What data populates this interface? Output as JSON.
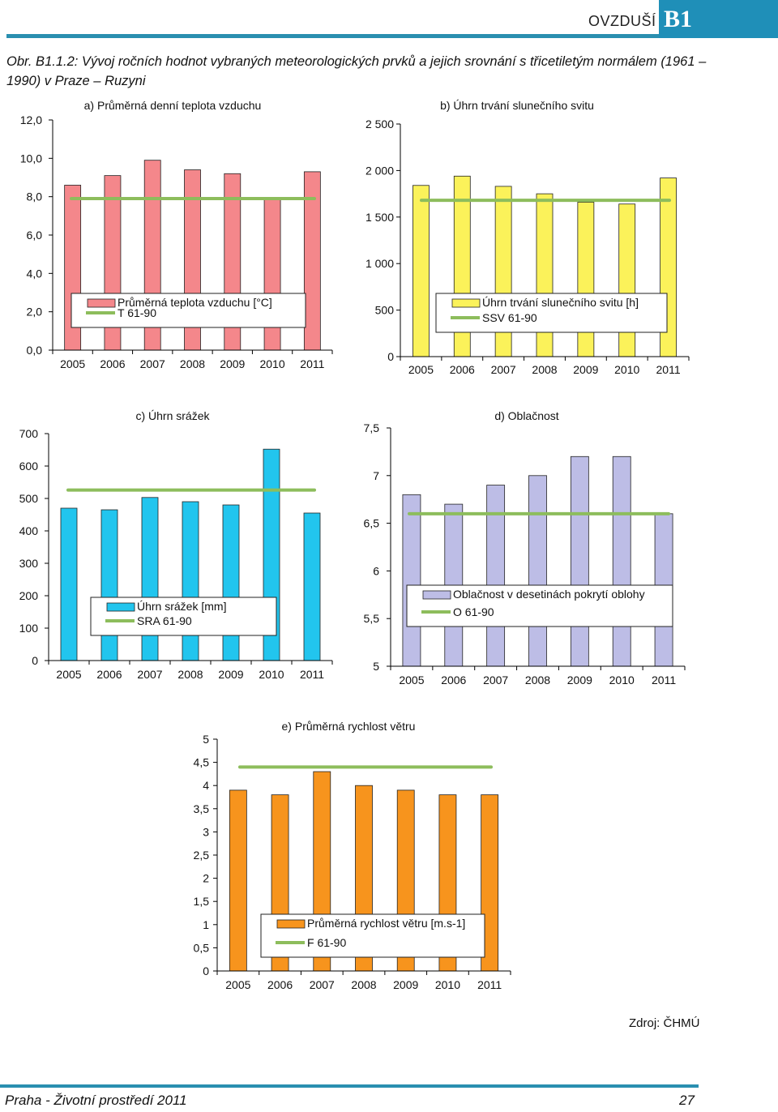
{
  "header": {
    "section": "OVZDUŠÍ",
    "badge": "B1",
    "accent": "#1f8fb8"
  },
  "figure_title": "Obr. B1.1.2: Vývoj ročních hodnot vybraných meteorologických prvků a jejich srovnání s třicetiletým normálem (1961 – 1990) v Praze – Ruzyni",
  "source": "Zdroj: ČHMÚ",
  "footer": {
    "left": "Praha - Životní prostředí 2011",
    "page": "27"
  },
  "chart_data": [
    {
      "type": "bar",
      "title": "a) Průměrná denní teplota vzduchu",
      "categories": [
        "2005",
        "2006",
        "2007",
        "2008",
        "2009",
        "2010",
        "2011"
      ],
      "series": [
        {
          "name": "Průměrná teplota vzduchu [°C]",
          "values": [
            8.6,
            9.1,
            9.9,
            9.4,
            9.2,
            7.9,
            9.3
          ]
        }
      ],
      "normal": {
        "name": "T 61-90",
        "value": 7.9
      },
      "ylim": [
        0,
        12
      ],
      "yticks": [
        "0,0",
        "2,0",
        "4,0",
        "6,0",
        "8,0",
        "10,0",
        "12,0"
      ],
      "colors": {
        "bar": "#f4878b",
        "normal": "#8dbd5c"
      }
    },
    {
      "type": "bar",
      "title": "b) Úhrn trvání slunečního svitu",
      "categories": [
        "2005",
        "2006",
        "2007",
        "2008",
        "2009",
        "2010",
        "2011"
      ],
      "series": [
        {
          "name": "Úhrn trvání slunečního svitu [h]",
          "values": [
            1840,
            1940,
            1830,
            1750,
            1660,
            1640,
            1920
          ]
        }
      ],
      "normal": {
        "name": "SSV 61-90",
        "value": 1680
      },
      "ylim": [
        0,
        2500
      ],
      "yticks": [
        "0",
        "500",
        "1 000",
        "1 500",
        "2 000",
        "2 500"
      ],
      "colors": {
        "bar": "#fbf25a",
        "normal": "#8dbd5c"
      }
    },
    {
      "type": "bar",
      "title": "c) Úhrn srážek",
      "categories": [
        "2005",
        "2006",
        "2007",
        "2008",
        "2009",
        "2010",
        "2011"
      ],
      "series": [
        {
          "name": "Úhrn srážek [mm]",
          "values": [
            470,
            465,
            503,
            490,
            480,
            652,
            455
          ]
        }
      ],
      "normal": {
        "name": "SRA 61-90",
        "value": 526
      },
      "ylim": [
        0,
        700
      ],
      "yticks": [
        "0",
        "100",
        "200",
        "300",
        "400",
        "500",
        "600",
        "700"
      ],
      "colors": {
        "bar": "#22c5ee",
        "normal": "#8dbd5c"
      }
    },
    {
      "type": "bar",
      "title": "d) Oblačnost",
      "categories": [
        "2005",
        "2006",
        "2007",
        "2008",
        "2009",
        "2010",
        "2011"
      ],
      "series": [
        {
          "name": "Oblačnost v desetinách pokrytí oblohy",
          "values": [
            6.8,
            6.7,
            6.9,
            7.0,
            7.2,
            7.2,
            6.6
          ]
        }
      ],
      "normal": {
        "name": "O 61-90",
        "value": 6.6
      },
      "ylim": [
        5,
        7.5
      ],
      "yticks": [
        "5",
        "5,5",
        "6",
        "6,5",
        "7",
        "7,5"
      ],
      "colors": {
        "bar": "#bdbde6",
        "normal": "#8dbd5c"
      }
    },
    {
      "type": "bar",
      "title": "e) Průměrná rychlost větru",
      "categories": [
        "2005",
        "2006",
        "2007",
        "2008",
        "2009",
        "2010",
        "2011"
      ],
      "series": [
        {
          "name": "Průměrná rychlost větru [m.s-1]",
          "values": [
            3.9,
            3.8,
            4.3,
            4.0,
            3.9,
            3.8,
            3.8
          ]
        }
      ],
      "normal": {
        "name": "F 61-90",
        "value": 4.4
      },
      "ylim": [
        0,
        5
      ],
      "yticks": [
        "0",
        "0,5",
        "1",
        "1,5",
        "2",
        "2,5",
        "3",
        "3,5",
        "4",
        "4,5",
        "5"
      ],
      "colors": {
        "bar": "#f7941d",
        "normal": "#8dbd5c"
      }
    }
  ]
}
